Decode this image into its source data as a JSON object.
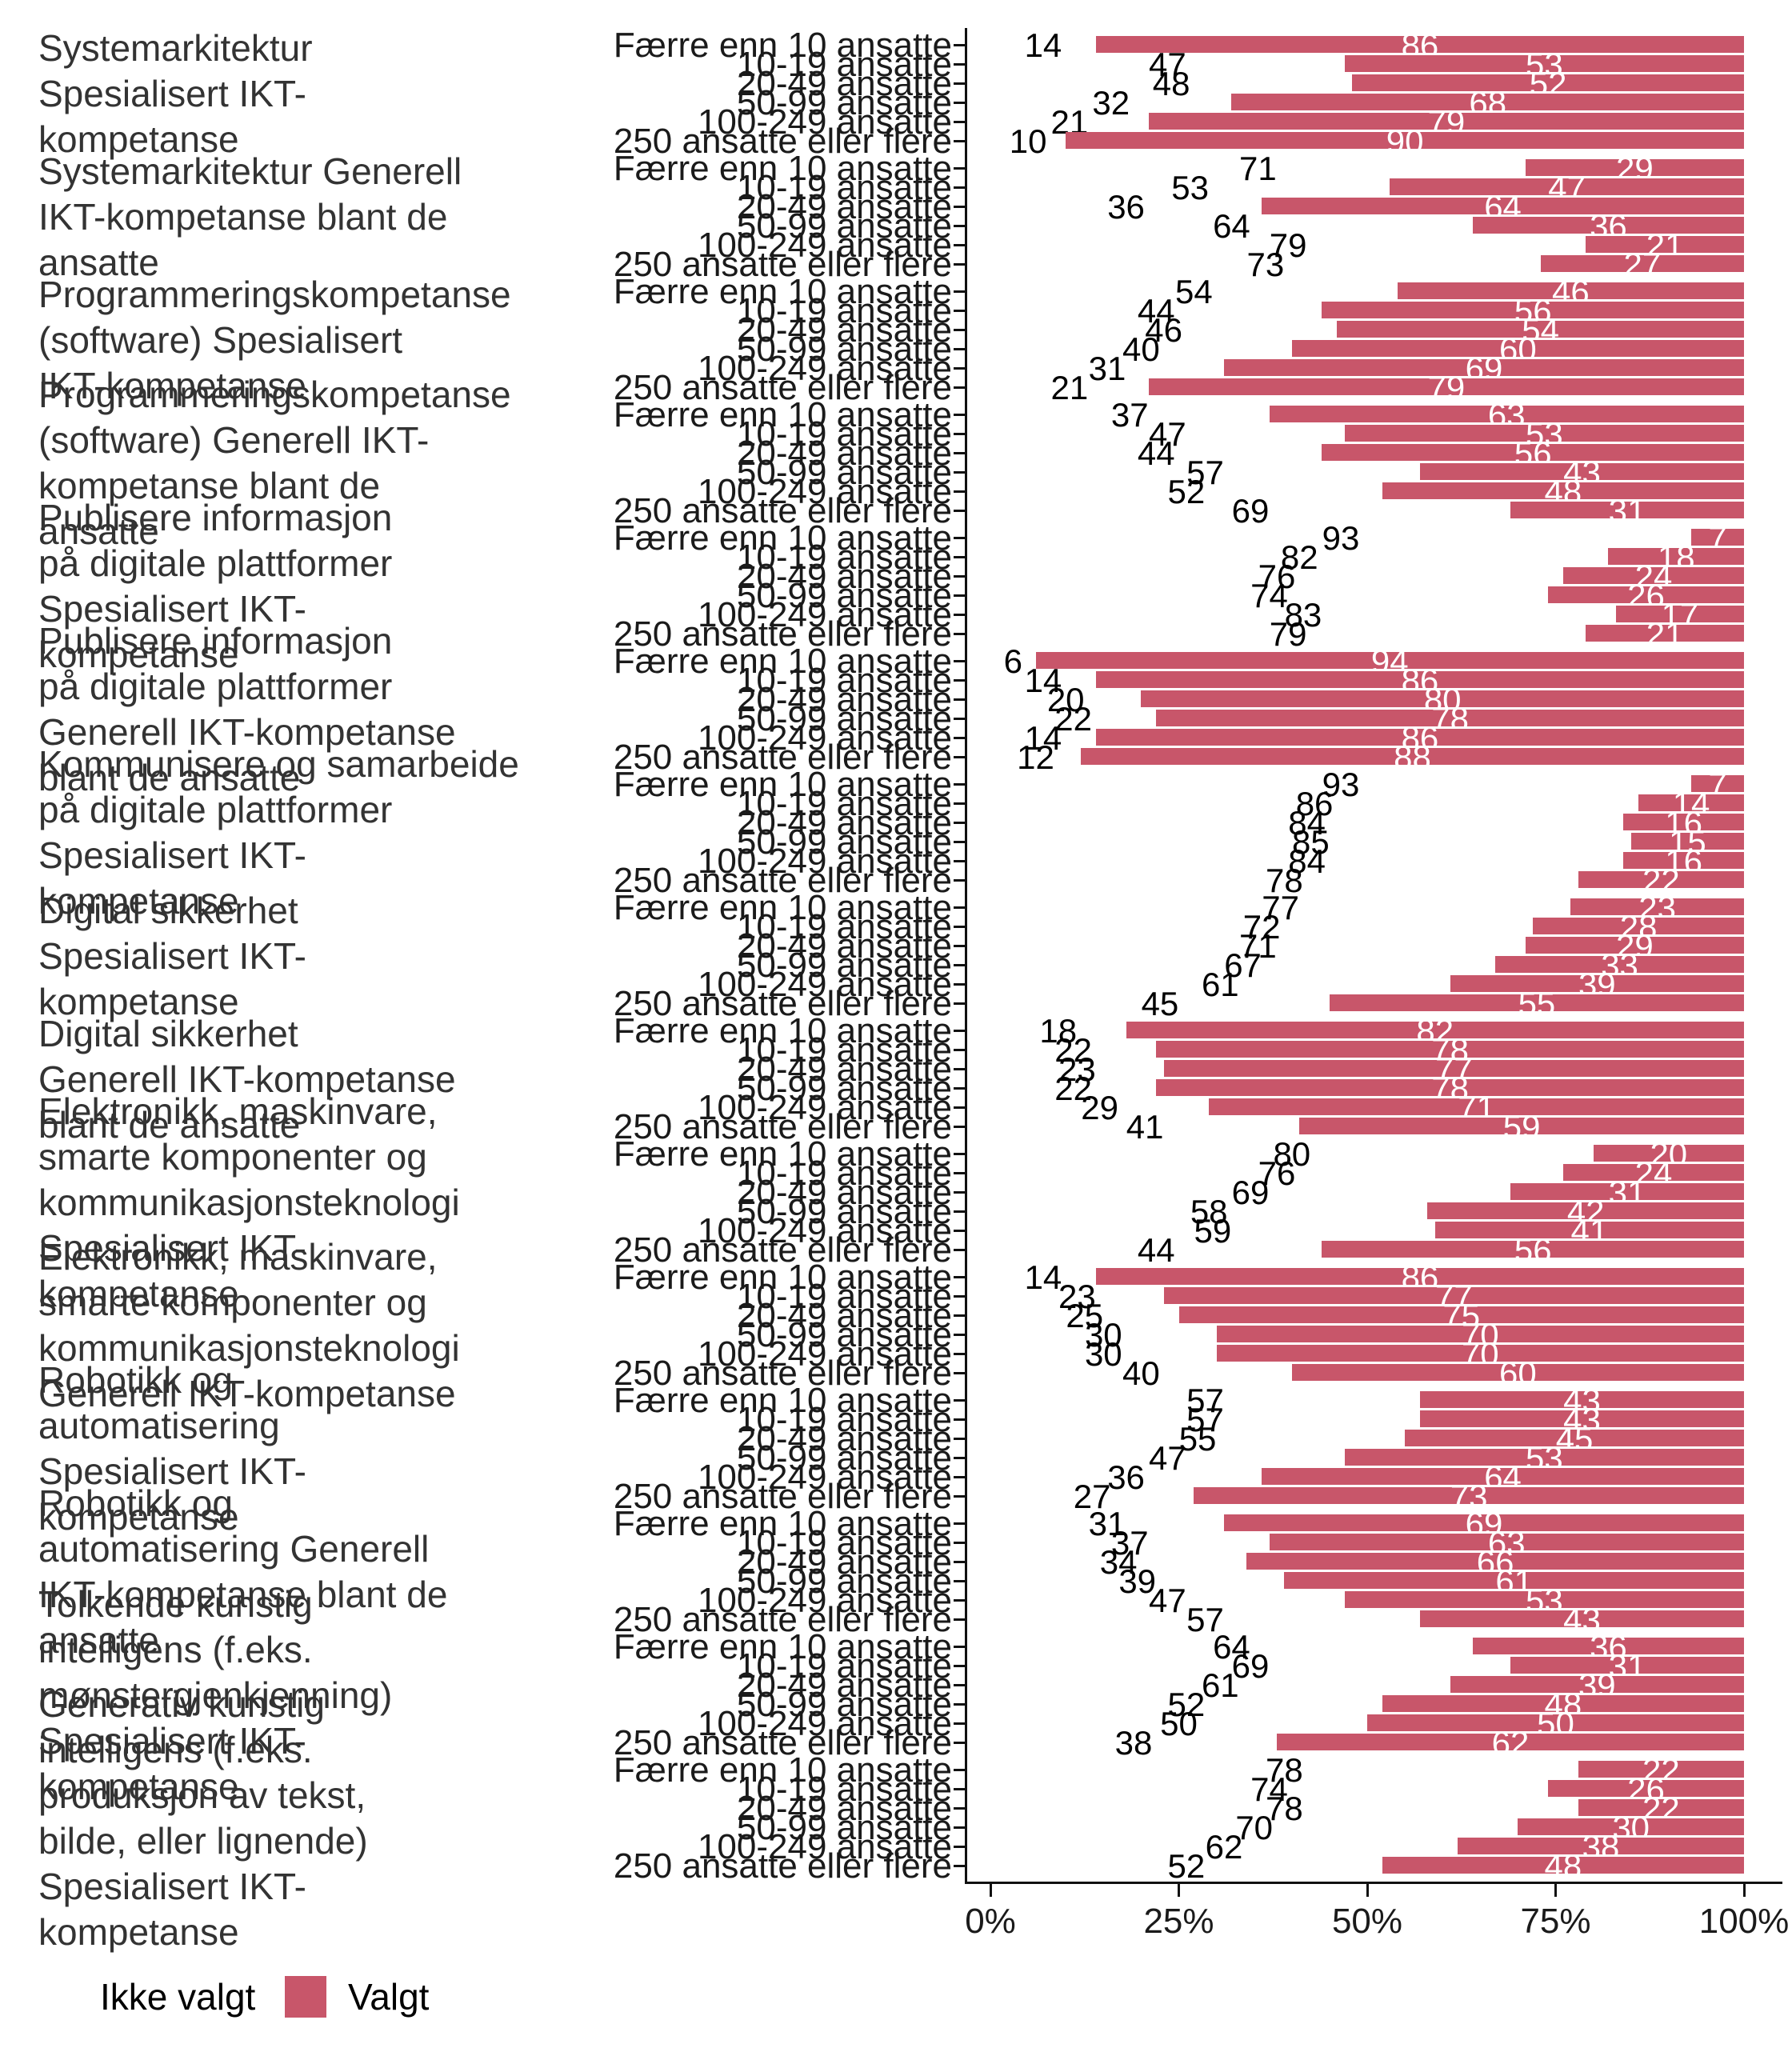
{
  "legend": {
    "items": [
      {
        "label": "Ikke valgt",
        "color": "#FFFFFF"
      },
      {
        "label": "Valgt",
        "color": "#C8566A"
      }
    ]
  },
  "chart_data": {
    "type": "bar",
    "orientation": "horizontal",
    "stack": "percent",
    "unit": "%",
    "grid": "off",
    "legend_position": "bottom-left",
    "x_axis": {
      "range": [
        0,
        100
      ],
      "ticks": [
        {
          "value": 0,
          "label": "0%"
        },
        {
          "value": 25,
          "label": "25%"
        },
        {
          "value": 50,
          "label": "50%"
        },
        {
          "value": 75,
          "label": "75%"
        },
        {
          "value": 100,
          "label": "100%"
        }
      ]
    },
    "size_categories": [
      "Færre enn 10 ansatte",
      "10-19 ansatte",
      "20-49 ansatte",
      "50-99 ansatte",
      "100-249 ansatte",
      "250 ansatte eller flere"
    ],
    "series": [
      "Ikke valgt",
      "Valgt"
    ],
    "valgt_color": "#C8566A",
    "ikke_valgt_color": "#FFFFFF",
    "facets": [
      {
        "label": "Systemarkitektur Spesialisert IKT-kompetanse",
        "label_lines": [
          "Systemarkitektur",
          "Spesialisert IKT-",
          "kompetanse"
        ],
        "ikke_valgt": [
          14,
          47,
          48,
          32,
          21,
          10
        ],
        "valgt": [
          86,
          53,
          52,
          68,
          79,
          90
        ]
      },
      {
        "label": "Systemarkitektur Generell IKT-kompetanse blant de ansatte",
        "label_lines": [
          "Systemarkitektur Generell",
          "IKT-kompetanse blant de",
          "ansatte"
        ],
        "ikke_valgt": [
          71,
          53,
          36,
          64,
          79,
          73
        ],
        "valgt": [
          29,
          47,
          64,
          36,
          21,
          27
        ]
      },
      {
        "label": "Programmeringskompetanse (software) Spesialisert IKT-kompetanse",
        "label_lines": [
          "Programmeringskompetanse",
          "(software) Spesialisert",
          "IKT-kompetanse"
        ],
        "ikke_valgt": [
          54,
          44,
          46,
          40,
          31,
          21
        ],
        "valgt": [
          46,
          56,
          54,
          60,
          69,
          79
        ]
      },
      {
        "label": "Programmeringskompetanse (software) Generell IKT-kompetanse blant de ansatte",
        "label_lines": [
          "Programmeringskompetanse",
          "(software) Generell IKT-",
          "kompetanse blant de",
          "ansatte"
        ],
        "ikke_valgt": [
          37,
          47,
          44,
          57,
          52,
          69
        ],
        "valgt": [
          63,
          53,
          56,
          43,
          48,
          31
        ]
      },
      {
        "label": "Publisere informasjon på digitale plattformer Spesialisert IKT-kompetanse",
        "label_lines": [
          "Publisere informasjon",
          "på digitale plattformer",
          "Spesialisert IKT-",
          "kompetanse"
        ],
        "ikke_valgt": [
          93,
          82,
          76,
          74,
          83,
          79
        ],
        "valgt": [
          7,
          18,
          24,
          26,
          17,
          21
        ]
      },
      {
        "label": "Publisere informasjon på digitale plattformer Generell IKT-kompetanse blant de ansatte",
        "label_lines": [
          "Publisere informasjon",
          "på digitale plattformer",
          "Generell IKT-kompetanse",
          "blant de ansatte"
        ],
        "ikke_valgt": [
          6,
          14,
          20,
          22,
          14,
          12
        ],
        "valgt": [
          94,
          86,
          80,
          78,
          86,
          88
        ]
      },
      {
        "label": "Kommunisere og samarbeide på digitale plattformer Spesialisert IKT-kompetanse",
        "label_lines": [
          "Kommunisere og samarbeide",
          "på digitale plattformer",
          "Spesialisert IKT-",
          "kompetanse"
        ],
        "ikke_valgt": [
          93,
          86,
          84,
          85,
          84,
          78
        ],
        "valgt": [
          7,
          14,
          16,
          15,
          16,
          22
        ]
      },
      {
        "label": "Digital sikkerhet Spesialisert IKT-kompetanse",
        "label_lines": [
          "Digital sikkerhet",
          "Spesialisert IKT-",
          "kompetanse"
        ],
        "ikke_valgt": [
          77,
          72,
          71,
          67,
          61,
          45
        ],
        "valgt": [
          23,
          28,
          29,
          33,
          39,
          55
        ]
      },
      {
        "label": "Digital sikkerhet Generell IKT-kompetanse blant de ansatte",
        "label_lines": [
          "Digital sikkerhet",
          "Generell IKT-kompetanse",
          "blant de ansatte"
        ],
        "ikke_valgt": [
          18,
          22,
          23,
          22,
          29,
          41
        ],
        "valgt": [
          82,
          78,
          77,
          78,
          71,
          59
        ]
      },
      {
        "label": "Elektronikk, maskinvare, smarte komponenter og kommunikasjonsteknologi Spesialisert IKT-kompetanse",
        "label_lines": [
          "Elektronikk, maskinvare,",
          "smarte komponenter og",
          "kommunikasjonsteknologi",
          "Spesialisert IKT-",
          "kompetanse"
        ],
        "ikke_valgt": [
          80,
          76,
          69,
          58,
          59,
          44
        ],
        "valgt": [
          20,
          24,
          31,
          42,
          41,
          56
        ]
      },
      {
        "label": "Elektronikk, maskinvare, smarte komponenter og kommunikasjonsteknologi Generell IKT-kompetanse",
        "label_lines": [
          "Elektronikk, maskinvare,",
          "smarte komponenter og",
          "kommunikasjonsteknologi",
          "Generell IKT-kompetanse"
        ],
        "ikke_valgt": [
          14,
          23,
          25,
          30,
          30,
          40
        ],
        "valgt": [
          86,
          77,
          75,
          70,
          70,
          60
        ]
      },
      {
        "label": "Robotikk og automatisering Spesialisert IKT-kompetanse",
        "label_lines": [
          "Robotikk og",
          "automatisering",
          "Spesialisert IKT-",
          "kompetanse"
        ],
        "ikke_valgt": [
          57,
          57,
          55,
          47,
          36,
          27
        ],
        "valgt": [
          43,
          43,
          45,
          53,
          64,
          73
        ]
      },
      {
        "label": "Robotikk og automatisering Generell IKT-kompetanse blant de ansatte",
        "label_lines": [
          "Robotikk og",
          "automatisering Generell",
          "IKT-kompetanse blant de",
          "ansatte"
        ],
        "ikke_valgt": [
          31,
          37,
          34,
          39,
          47,
          57
        ],
        "valgt": [
          69,
          63,
          66,
          61,
          53,
          43
        ]
      },
      {
        "label": "Tolkende kunstig intelligens (f.eks. mønstergjenkjenning) Spesialisert IKT-kompetanse",
        "label_lines": [
          "Tolkende kunstig",
          "intelligens (f.eks.",
          "mønstergjenkjenning)",
          "Spesialisert IKT-",
          "kompetanse"
        ],
        "ikke_valgt": [
          64,
          69,
          61,
          52,
          50,
          38
        ],
        "valgt": [
          36,
          31,
          39,
          48,
          50,
          62
        ]
      },
      {
        "label": "Generativ kunstig intelligens (f.eks. produksjon av tekst, bilde, eller lignende) Spesialisert IKT-kompetanse",
        "label_lines": [
          "Generativ kunstig",
          "intelligens (f.eks.",
          "produksjon av tekst,",
          "bilde, eller lignende)",
          "Spesialisert IKT-",
          "kompetanse"
        ],
        "ikke_valgt": [
          78,
          74,
          78,
          70,
          62,
          52
        ],
        "valgt": [
          22,
          26,
          22,
          30,
          38,
          48
        ]
      }
    ]
  }
}
